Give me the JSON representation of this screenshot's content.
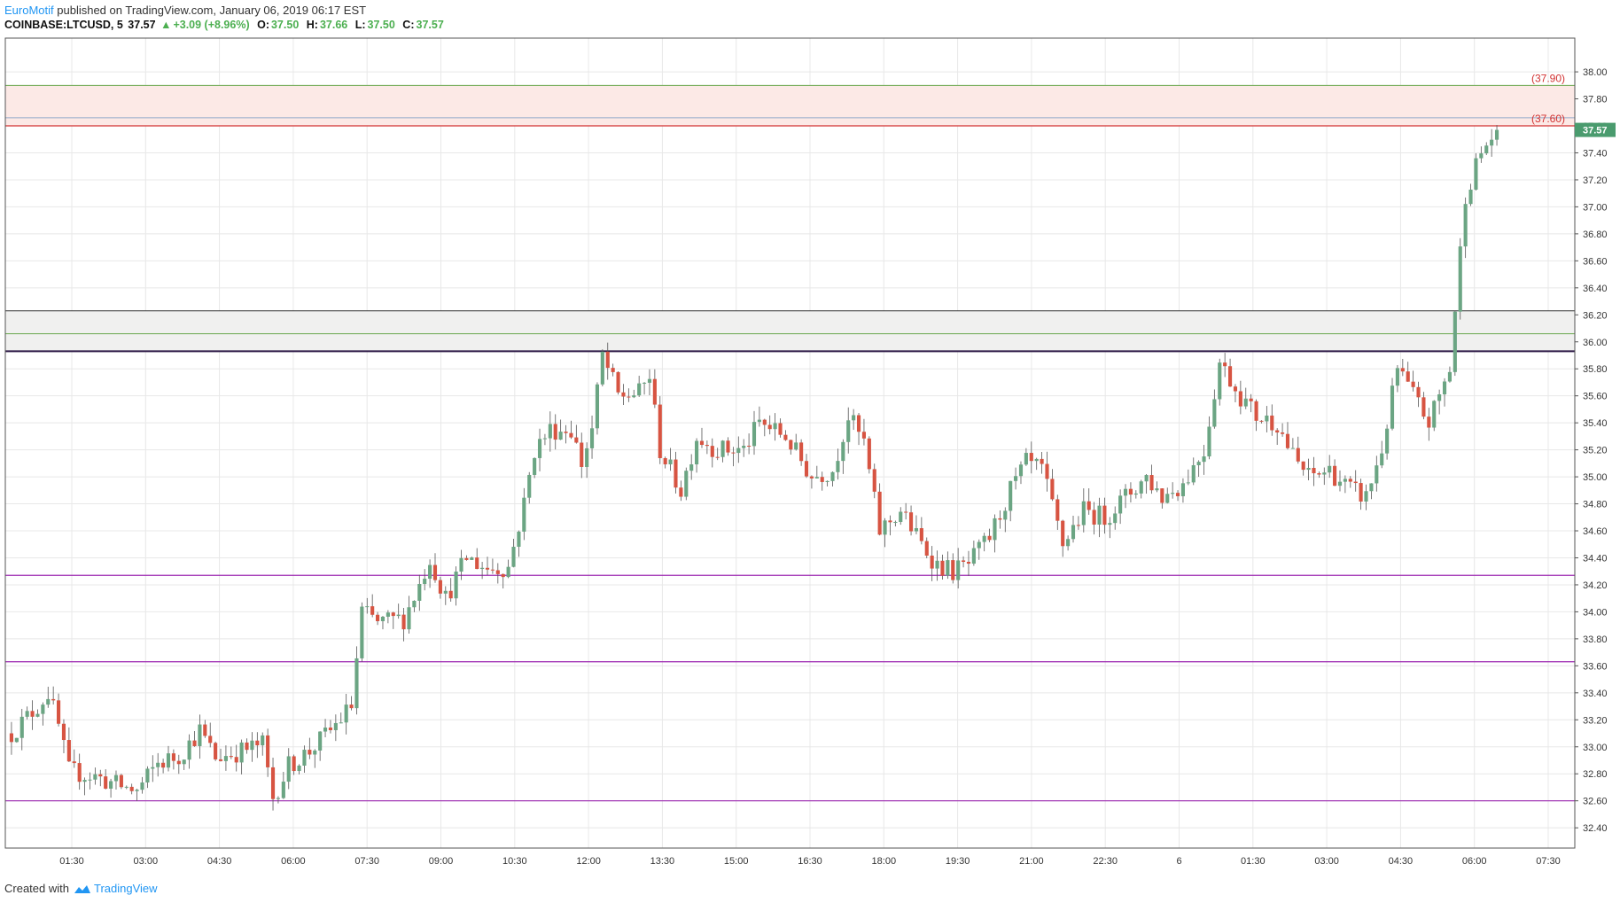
{
  "header": {
    "author": "EuroMotif",
    "published_text": " published on TradingView.com, January 06, 2019 06:17 EST",
    "symbol": "COINBASE:LTCUSD, 5",
    "last": "37.57",
    "change": "+3.09 (+8.96%)",
    "o_label": "O:",
    "o_val": "37.50",
    "h_label": "H:",
    "h_val": "37.66",
    "l_label": "L:",
    "l_val": "37.50",
    "c_label": "C:",
    "c_val": "37.57"
  },
  "footer": {
    "created_with": "Created with",
    "brand": "TradingView"
  },
  "colors": {
    "up": "#6ba583",
    "down": "#d75442",
    "grid": "#e8e8e8",
    "hline": "#9c27b0",
    "resistance": "#2e1a47"
  },
  "chart_data": {
    "type": "candlestick",
    "ylim": [
      32.25,
      38.25
    ],
    "y_ticks": [
      "32.40",
      "32.60",
      "32.80",
      "33.00",
      "33.20",
      "33.40",
      "33.60",
      "33.80",
      "34.00",
      "34.20",
      "34.40",
      "34.60",
      "34.80",
      "35.00",
      "35.20",
      "35.40",
      "35.60",
      "35.80",
      "36.00",
      "36.20",
      "36.40",
      "36.60",
      "36.80",
      "37.00",
      "37.20",
      "37.40",
      "37.60",
      "37.80",
      "38.00"
    ],
    "x_ticks": [
      "01:30",
      "03:00",
      "04:30",
      "06:00",
      "07:30",
      "09:00",
      "10:30",
      "12:00",
      "13:30",
      "15:00",
      "16:30",
      "18:00",
      "19:30",
      "21:00",
      "22:30",
      "6",
      "01:30",
      "03:00",
      "04:30",
      "06:00",
      "07:30"
    ],
    "last_price": "37.57",
    "zone_top": {
      "from": 37.6,
      "to": 37.9,
      "labels": [
        "(37.90)",
        "(37.60)"
      ]
    },
    "zone_mid": {
      "from": 35.93,
      "to": 36.23
    },
    "horizontal_lines": [
      34.27,
      33.63,
      32.6,
      35.93,
      36.06,
      37.66
    ],
    "series": [
      {
        "anchors": [
          [
            0,
            33.1
          ],
          [
            5,
            33.3
          ],
          [
            7,
            33.4
          ],
          [
            9,
            33.15
          ],
          [
            11,
            32.82
          ],
          [
            16,
            32.78
          ],
          [
            20,
            32.72
          ],
          [
            24,
            32.67
          ],
          [
            28,
            32.88
          ],
          [
            32,
            32.93
          ],
          [
            36,
            33.12
          ],
          [
            39,
            32.92
          ],
          [
            44,
            32.97
          ],
          [
            48,
            33.02
          ],
          [
            50,
            32.62
          ],
          [
            53,
            32.86
          ],
          [
            57,
            32.97
          ],
          [
            61,
            33.12
          ],
          [
            65,
            33.3
          ],
          [
            67,
            34.0
          ],
          [
            70,
            33.92
          ],
          [
            75,
            33.95
          ],
          [
            78,
            34.2
          ],
          [
            80,
            34.4
          ],
          [
            83,
            34.1
          ],
          [
            87,
            34.4
          ],
          [
            91,
            34.32
          ],
          [
            95,
            34.33
          ],
          [
            98,
            34.8
          ],
          [
            100,
            35.2
          ],
          [
            103,
            35.35
          ],
          [
            107,
            35.35
          ],
          [
            109,
            35.1
          ],
          [
            111,
            35.35
          ],
          [
            113,
            35.9
          ],
          [
            116,
            35.6
          ],
          [
            120,
            35.62
          ],
          [
            122,
            35.75
          ],
          [
            124,
            35.2
          ],
          [
            128,
            34.9
          ],
          [
            131,
            35.3
          ],
          [
            135,
            35.2
          ],
          [
            140,
            35.2
          ],
          [
            143,
            35.4
          ],
          [
            148,
            35.3
          ],
          [
            153,
            35.0
          ],
          [
            157,
            35.05
          ],
          [
            160,
            35.45
          ],
          [
            163,
            35.25
          ],
          [
            166,
            34.6
          ],
          [
            170,
            34.75
          ],
          [
            174,
            34.5
          ],
          [
            177,
            34.35
          ],
          [
            180,
            34.3
          ],
          [
            183,
            34.35
          ],
          [
            187,
            34.55
          ],
          [
            191,
            34.9
          ],
          [
            194,
            35.1
          ],
          [
            197,
            35.05
          ],
          [
            201,
            34.5
          ],
          [
            205,
            34.75
          ],
          [
            209,
            34.7
          ],
          [
            213,
            34.85
          ],
          [
            217,
            35.0
          ],
          [
            220,
            34.85
          ],
          [
            224,
            34.95
          ],
          [
            228,
            35.2
          ],
          [
            231,
            35.85
          ],
          [
            235,
            35.6
          ],
          [
            238,
            35.45
          ],
          [
            242,
            35.4
          ],
          [
            245,
            35.15
          ],
          [
            248,
            35.0
          ],
          [
            252,
            35.05
          ],
          [
            256,
            34.9
          ],
          [
            259,
            34.85
          ],
          [
            262,
            35.2
          ],
          [
            265,
            35.8
          ],
          [
            268,
            35.6
          ],
          [
            271,
            35.4
          ],
          [
            273,
            35.6
          ],
          [
            275,
            35.8
          ],
          [
            278,
            37.1
          ],
          [
            281,
            37.4
          ],
          [
            284,
            37.57
          ]
        ]
      }
    ]
  }
}
